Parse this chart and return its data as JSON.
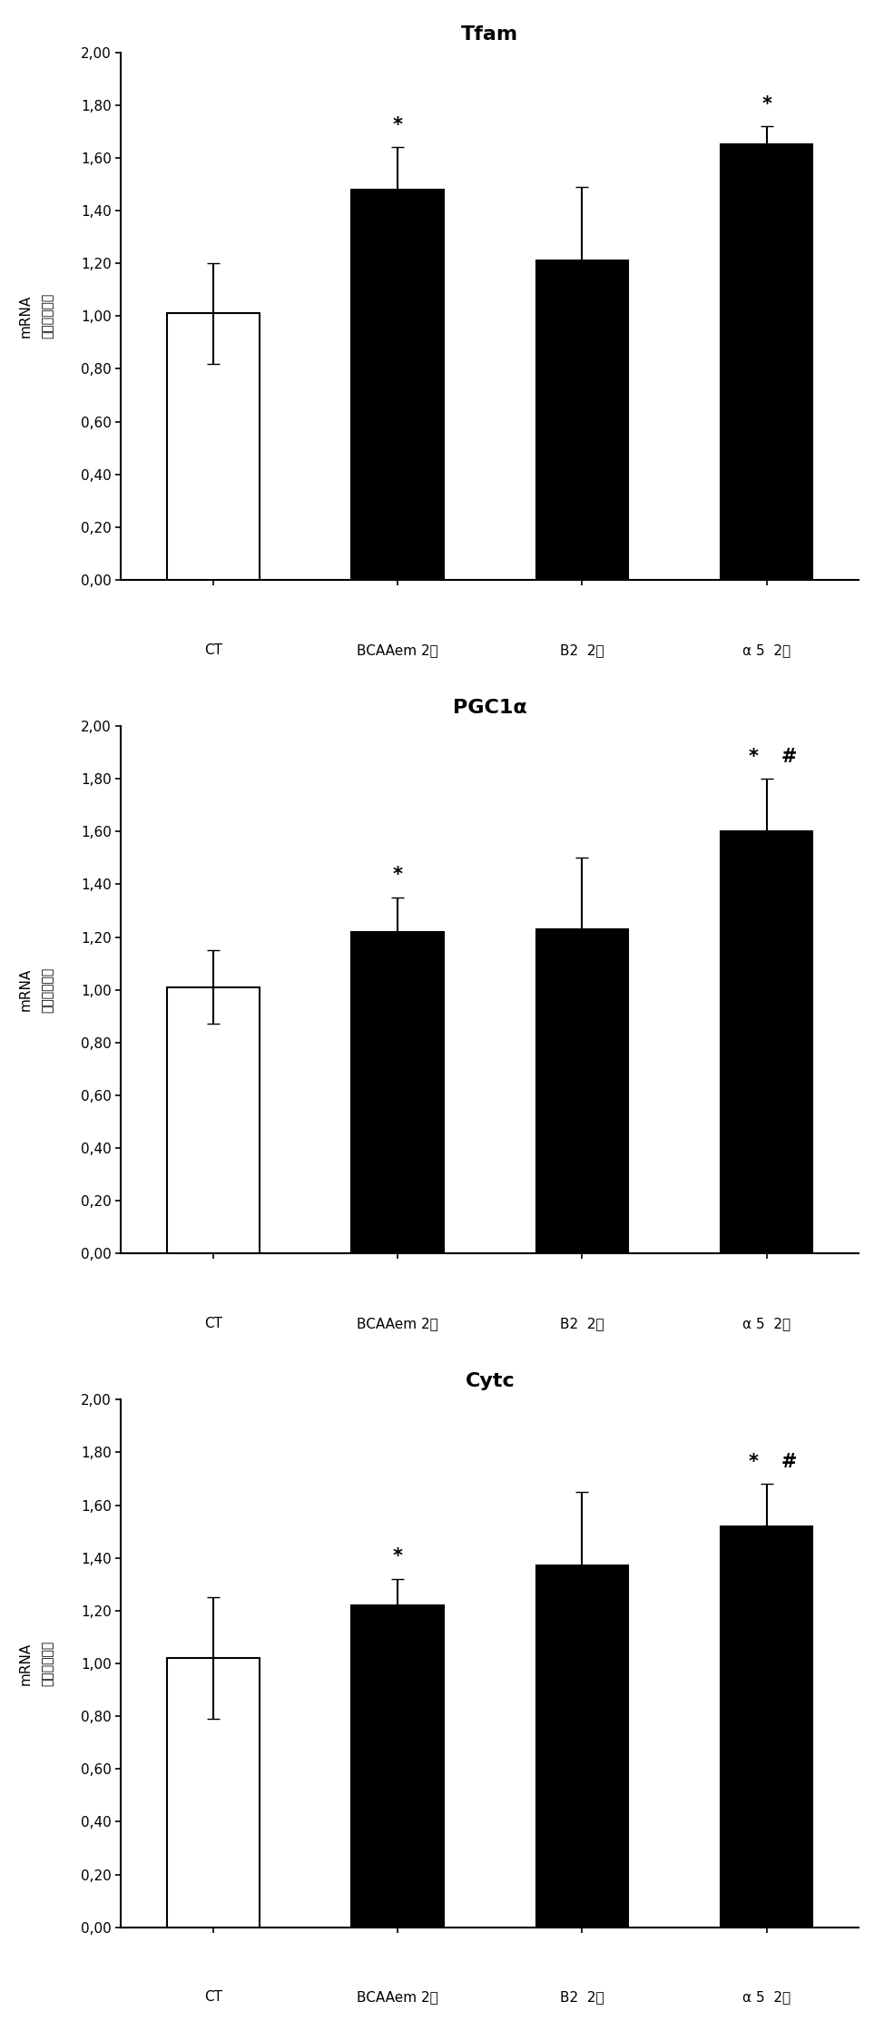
{
  "panels": [
    {
      "title": "Tfam",
      "categories": [
        "CT",
        "BCAAem 2天",
        "B2  2天",
        "α 5  2天"
      ],
      "values": [
        1.01,
        1.48,
        1.21,
        1.65
      ],
      "errors": [
        0.19,
        0.16,
        0.28,
        0.07
      ],
      "bar_colors": [
        "white",
        "black",
        "black",
        "black"
      ],
      "bar_edgecolors": [
        "black",
        "black",
        "black",
        "black"
      ],
      "annotations": [
        "",
        "*",
        "",
        "*"
      ],
      "annotations2": [
        "",
        "",
        "",
        ""
      ],
      "sig_fontsize": 15
    },
    {
      "title": "PGC1α",
      "categories": [
        "CT",
        "BCAAem 2天",
        "B2  2天",
        "α 5  2天"
      ],
      "values": [
        1.01,
        1.22,
        1.23,
        1.6
      ],
      "errors": [
        0.14,
        0.13,
        0.27,
        0.2
      ],
      "bar_colors": [
        "white",
        "black",
        "black",
        "black"
      ],
      "bar_edgecolors": [
        "black",
        "black",
        "black",
        "black"
      ],
      "annotations": [
        "",
        "*",
        "",
        "*"
      ],
      "annotations2": [
        "",
        "",
        "",
        "#"
      ],
      "sig_fontsize": 15
    },
    {
      "title": "Cytc",
      "categories": [
        "CT",
        "BCAAem 2天",
        "B2  2天",
        "α 5  2天"
      ],
      "values": [
        1.02,
        1.22,
        1.37,
        1.52
      ],
      "errors": [
        0.23,
        0.1,
        0.28,
        0.16
      ],
      "bar_colors": [
        "white",
        "black",
        "black",
        "black"
      ],
      "bar_edgecolors": [
        "black",
        "black",
        "black",
        "black"
      ],
      "annotations": [
        "",
        "*",
        "",
        "*"
      ],
      "annotations2": [
        "",
        "",
        "",
        "#"
      ],
      "sig_fontsize": 15
    }
  ],
  "ylabel_line1": "mRNA",
  "ylabel_line2": "（相对表达）",
  "ylim": [
    0,
    2.0
  ],
  "yticks": [
    0.0,
    0.2,
    0.4,
    0.6,
    0.8,
    1.0,
    1.2,
    1.4,
    1.6,
    1.8,
    2.0
  ],
  "ytick_labels": [
    "0,00",
    "0,20",
    "0,40",
    "0,60",
    "0,80",
    "1,00",
    "1,20",
    "1,40",
    "1,60",
    "1,80",
    "2,00"
  ],
  "background_color": "white",
  "bar_width": 0.5
}
